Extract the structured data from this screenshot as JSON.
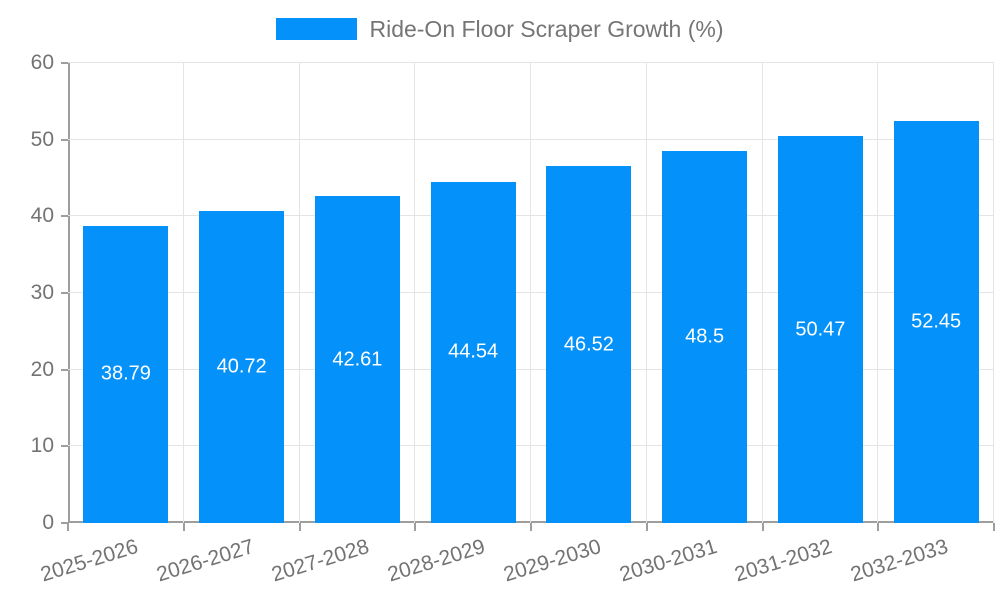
{
  "chart_data": {
    "type": "bar",
    "title": "Ride-On Floor Scraper Growth (%)",
    "categories": [
      "2025-2026",
      "2026-2027",
      "2027-2028",
      "2028-2029",
      "2029-2030",
      "2030-2031",
      "2031-2032",
      "2032-2033"
    ],
    "values": [
      38.79,
      40.72,
      42.61,
      44.54,
      46.52,
      48.5,
      50.47,
      52.45
    ],
    "value_labels": [
      "38.79",
      "40.72",
      "42.61",
      "44.54",
      "46.52",
      "48.5",
      "50.47",
      "52.45"
    ],
    "xlabel": "",
    "ylabel": "",
    "ylim": [
      0,
      60
    ],
    "yticks": [
      0,
      10,
      20,
      30,
      40,
      50,
      60
    ],
    "ytick_labels": [
      "0",
      "10",
      "20",
      "30",
      "40",
      "50",
      "60"
    ],
    "grid": "both",
    "legend_position": "top-center",
    "colors": {
      "bar": "#0591fa",
      "grid": "#e4e4e4",
      "axis": "#9e9e9e",
      "tick_label": "#737373",
      "legend_text": "#757575",
      "value_label": "#ffffff"
    }
  }
}
